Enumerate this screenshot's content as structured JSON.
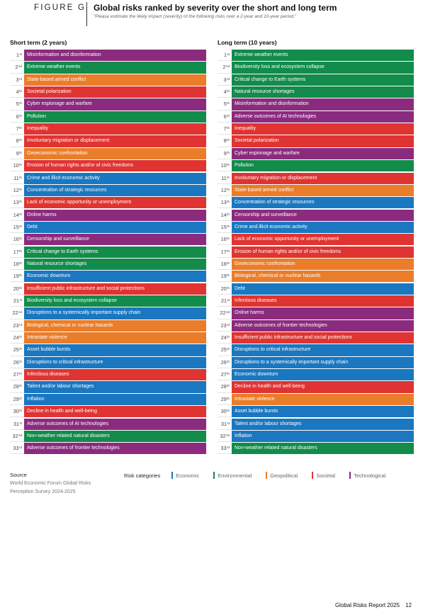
{
  "header": {
    "figure_label": "FIGURE G",
    "title": "Global risks ranked by severity over the short and long term",
    "subtitle": "\"Please estimate the likely impact (severity) of the following risks over a 2-year and 10-year period.\""
  },
  "colors": {
    "Economic": "#1a77c0",
    "Environmental": "#128b4b",
    "Geopolitical": "#ea7d2a",
    "Societal": "#df3431",
    "Technological": "#8b2b7e"
  },
  "short_term": {
    "heading": "Short term (2 years)",
    "rows": [
      {
        "rank": "1",
        "suffix": "st",
        "label": "Misinformation and disinformation",
        "category": "Technological"
      },
      {
        "rank": "2",
        "suffix": "nd",
        "label": "Extreme weather events",
        "category": "Environmental"
      },
      {
        "rank": "3",
        "suffix": "rd",
        "label": "State-based armed conflict",
        "category": "Geopolitical"
      },
      {
        "rank": "4",
        "suffix": "th",
        "label": "Societal polarization",
        "category": "Societal"
      },
      {
        "rank": "5",
        "suffix": "th",
        "label": "Cyber espionage and warfare",
        "category": "Technological"
      },
      {
        "rank": "6",
        "suffix": "th",
        "label": "Pollution",
        "category": "Environmental"
      },
      {
        "rank": "7",
        "suffix": "th",
        "label": "Inequality",
        "category": "Societal"
      },
      {
        "rank": "8",
        "suffix": "th",
        "label": "Involuntary migration or displacement",
        "category": "Societal"
      },
      {
        "rank": "9",
        "suffix": "th",
        "label": "Geoeconomic confrontation",
        "category": "Geopolitical"
      },
      {
        "rank": "10",
        "suffix": "th",
        "label": "Erosion of human rights and/or of civic freedoms",
        "category": "Societal"
      },
      {
        "rank": "11",
        "suffix": "th",
        "label": "Crime and illicit economic activity",
        "category": "Economic"
      },
      {
        "rank": "12",
        "suffix": "th",
        "label": "Concentration of strategic resources",
        "category": "Economic"
      },
      {
        "rank": "13",
        "suffix": "th",
        "label": "Lack of economic opportunity or unemployment",
        "category": "Societal"
      },
      {
        "rank": "14",
        "suffix": "th",
        "label": "Online harms",
        "category": "Technological"
      },
      {
        "rank": "15",
        "suffix": "th",
        "label": "Debt",
        "category": "Economic"
      },
      {
        "rank": "16",
        "suffix": "th",
        "label": "Censorship and surveillance",
        "category": "Technological"
      },
      {
        "rank": "17",
        "suffix": "th",
        "label": "Critical change to Earth systems",
        "category": "Environmental"
      },
      {
        "rank": "18",
        "suffix": "th",
        "label": "Natural resource shortages",
        "category": "Environmental"
      },
      {
        "rank": "19",
        "suffix": "th",
        "label": "Economic downturn",
        "category": "Economic"
      },
      {
        "rank": "20",
        "suffix": "th",
        "label": "Insufficient public infrastructure and social protections",
        "category": "Societal"
      },
      {
        "rank": "21",
        "suffix": "st",
        "label": "Biodiversity loss and ecosystem collapse",
        "category": "Environmental"
      },
      {
        "rank": "22",
        "suffix": "nd",
        "label": "Disruptions to a systemically important supply chain",
        "category": "Economic"
      },
      {
        "rank": "23",
        "suffix": "rd",
        "label": "Biological, chemical or nuclear hazards",
        "category": "Geopolitical"
      },
      {
        "rank": "24",
        "suffix": "th",
        "label": "Intrastate violence",
        "category": "Geopolitical"
      },
      {
        "rank": "25",
        "suffix": "th",
        "label": "Asset bubble bursts",
        "category": "Economic"
      },
      {
        "rank": "26",
        "suffix": "th",
        "label": "Disruptions to critical infrastructure",
        "category": "Economic"
      },
      {
        "rank": "27",
        "suffix": "th",
        "label": "Infectious diseases",
        "category": "Societal"
      },
      {
        "rank": "28",
        "suffix": "th",
        "label": "Talent and/or labour shortages",
        "category": "Economic"
      },
      {
        "rank": "29",
        "suffix": "th",
        "label": "Inflation",
        "category": "Economic"
      },
      {
        "rank": "30",
        "suffix": "th",
        "label": "Decline in health and well-being",
        "category": "Societal"
      },
      {
        "rank": "31",
        "suffix": "st",
        "label": "Adverse outcomes of AI technologies",
        "category": "Technological"
      },
      {
        "rank": "32",
        "suffix": "nd",
        "label": "Non-weather related natural disasters",
        "category": "Environmental"
      },
      {
        "rank": "33",
        "suffix": "rd",
        "label": "Adverse outcomes of frontier technologies",
        "category": "Technological"
      }
    ]
  },
  "long_term": {
    "heading": "Long term (10 years)",
    "rows": [
      {
        "rank": "1",
        "suffix": "st",
        "label": "Extreme weather events",
        "category": "Environmental"
      },
      {
        "rank": "2",
        "suffix": "nd",
        "label": "Biodiversity loss and ecosystem collapse",
        "category": "Environmental"
      },
      {
        "rank": "3",
        "suffix": "rd",
        "label": "Critical change to Earth systems",
        "category": "Environmental"
      },
      {
        "rank": "4",
        "suffix": "th",
        "label": "Natural resource shortages",
        "category": "Environmental"
      },
      {
        "rank": "5",
        "suffix": "th",
        "label": "Misinformation and disinformation",
        "category": "Technological"
      },
      {
        "rank": "6",
        "suffix": "th",
        "label": "Adverse outcomes of AI technologies",
        "category": "Technological"
      },
      {
        "rank": "7",
        "suffix": "th",
        "label": "Inequality",
        "category": "Societal"
      },
      {
        "rank": "8",
        "suffix": "th",
        "label": "Societal polarization",
        "category": "Societal"
      },
      {
        "rank": "9",
        "suffix": "th",
        "label": "Cyber espionage and warfare",
        "category": "Technological"
      },
      {
        "rank": "10",
        "suffix": "th",
        "label": "Pollution",
        "category": "Environmental"
      },
      {
        "rank": "11",
        "suffix": "th",
        "label": "Involuntary migration or displacement",
        "category": "Societal"
      },
      {
        "rank": "12",
        "suffix": "th",
        "label": "State-based armed conflict",
        "category": "Geopolitical"
      },
      {
        "rank": "13",
        "suffix": "th",
        "label": "Concentration of strategic resources",
        "category": "Economic"
      },
      {
        "rank": "14",
        "suffix": "th",
        "label": "Censorship and surveillance",
        "category": "Technological"
      },
      {
        "rank": "15",
        "suffix": "th",
        "label": "Crime and illicit economic activity",
        "category": "Economic"
      },
      {
        "rank": "16",
        "suffix": "th",
        "label": "Lack of economic opportunity or unemployment",
        "category": "Societal"
      },
      {
        "rank": "17",
        "suffix": "th",
        "label": "Erosion of human rights and/or of civic freedoms",
        "category": "Societal"
      },
      {
        "rank": "18",
        "suffix": "th",
        "label": "Geoeconomic confrontation",
        "category": "Geopolitical"
      },
      {
        "rank": "19",
        "suffix": "th",
        "label": "Biological, chemical or nuclear hazards",
        "category": "Geopolitical"
      },
      {
        "rank": "20",
        "suffix": "th",
        "label": "Debt",
        "category": "Economic"
      },
      {
        "rank": "21",
        "suffix": "st",
        "label": "Infectious diseases",
        "category": "Societal"
      },
      {
        "rank": "22",
        "suffix": "nd",
        "label": "Online harms",
        "category": "Technological"
      },
      {
        "rank": "23",
        "suffix": "rd",
        "label": "Adverse outcomes of frontier technologies",
        "category": "Technological"
      },
      {
        "rank": "24",
        "suffix": "th",
        "label": "Insufficient public infrastructure and social protections",
        "category": "Societal"
      },
      {
        "rank": "25",
        "suffix": "th",
        "label": "Disruptions to critical infrastructure",
        "category": "Economic"
      },
      {
        "rank": "26",
        "suffix": "th",
        "label": "Disruptions to a systemically important supply chain",
        "category": "Economic"
      },
      {
        "rank": "27",
        "suffix": "th",
        "label": "Economic downturn",
        "category": "Economic"
      },
      {
        "rank": "28",
        "suffix": "th",
        "label": "Decline in health and well-being",
        "category": "Societal"
      },
      {
        "rank": "29",
        "suffix": "th",
        "label": "Intrastate violence",
        "category": "Geopolitical"
      },
      {
        "rank": "30",
        "suffix": "th",
        "label": "Asset bubble bursts",
        "category": "Economic"
      },
      {
        "rank": "31",
        "suffix": "st",
        "label": "Talent and/or labour shortages",
        "category": "Economic"
      },
      {
        "rank": "32",
        "suffix": "nd",
        "label": "Inflation",
        "category": "Economic"
      },
      {
        "rank": "33",
        "suffix": "rd",
        "label": "Non-weather related natural disasters",
        "category": "Environmental"
      }
    ]
  },
  "footer": {
    "source_title": "Source",
    "source_lines": [
      "World Economic Forum Global Risks",
      "Perception Survey 2024-2025"
    ],
    "legend_title": "Risk categories",
    "legend_items": [
      "Economic",
      "Environmental",
      "Geopolitical",
      "Societal",
      "Technological"
    ]
  },
  "page": {
    "report_name": "Global Risks Report 2025",
    "page_number": "12"
  }
}
